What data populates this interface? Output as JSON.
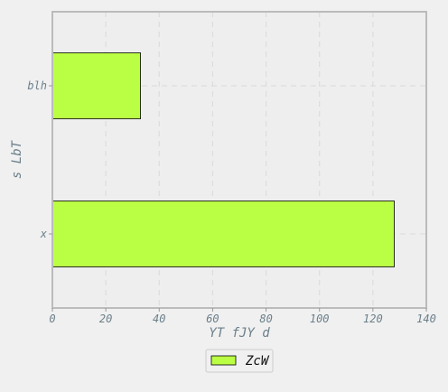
{
  "chart_data": {
    "type": "bar",
    "orientation": "horizontal",
    "categories": [
      "x",
      "blh"
    ],
    "series": [
      {
        "name": "ZcW",
        "values": [
          128,
          33
        ],
        "color": "#bbff44"
      }
    ],
    "xlabel": "YT fJY  d",
    "ylabel": "s LbT",
    "xlim": [
      0,
      140
    ],
    "xticks": [
      0,
      20,
      40,
      60,
      80,
      100,
      120,
      140
    ],
    "grid": true,
    "legend_position": "bottom-center"
  },
  "colors": {
    "background": "#f0f0f0",
    "plot_background": "#eeeeee",
    "frame": "#bbbbbb",
    "grid": "#dddddd",
    "bar_edge": "#000000",
    "text": "#6b7f8a"
  }
}
